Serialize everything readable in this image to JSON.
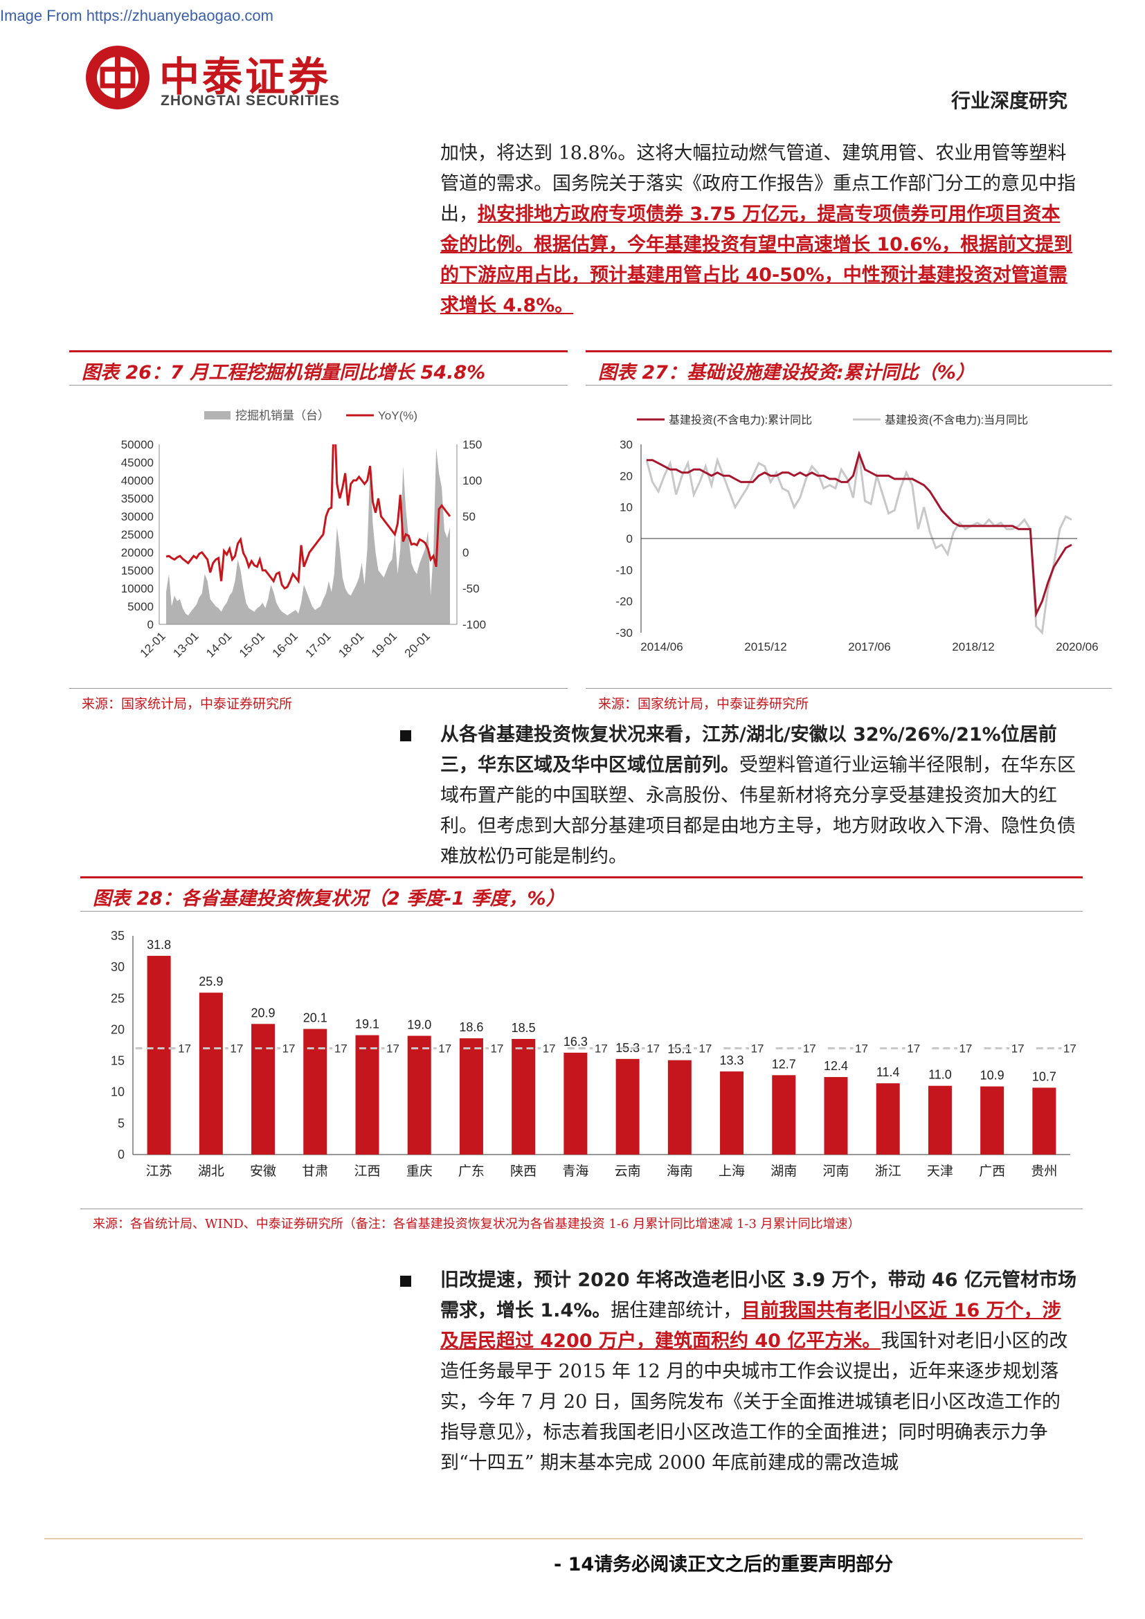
{
  "header": {
    "source_url": "Image From https://zhuanyebaogao.com",
    "brand_cn": "中泰证券",
    "brand_en": "ZHONGTAI SECURITIES",
    "report_type": "行业深度研究"
  },
  "para1": {
    "t1": "加快，将达到 18.8%。这将大幅拉动燃气管道、建筑用管、农业用管等塑料管道的需求。国务院关于落实《政府工作报告》重点工作部门分工的意见中指出，",
    "h1": "拟安排地方政府专项债券 3.75 万亿元，提高专项债券可用作项目资本金的比例。根据估算，今年基建投资有望中高速增长 10.6%，根据前文提到的下游应用占比，预计基建用管占比 40-50%，中性预计基建投资对管道需求增长 4.8%。"
  },
  "fig26": {
    "title": "图表 26：7 月工程挖掘机销量同比增长 54.8%",
    "source": "来源：国家统计局，中泰证券研究所"
  },
  "fig27": {
    "title": "图表 27：基础设施建设投资:累计同比（%）",
    "source": "来源：国家统计局，中泰证券研究所"
  },
  "para2": {
    "b1": "从各省基建投资恢复状况来看，江苏/湖北/安徽以 32%/26%/21%位居前三，华东区域及华中区域位居前列。",
    "t1": "受塑料管道行业运输半径限制，在华东区域布置产能的中国联塑、永高股份、伟星新材将充分享受基建投资加大的红利。但考虑到大部分基建项目都是由地方主导，地方财政收入下滑、隐性负债难放松仍可能是制约。"
  },
  "fig28": {
    "title": "图表 28：各省基建投资恢复状况（2 季度-1 季度，%）",
    "source": "来源：各省统计局、WIND、中泰证券研究所（备注：各省基建投资恢复状况为各省基建投资 1-6 月累计同比增速减 1-3 月累计同比增速）"
  },
  "para3": {
    "b1": "旧改提速，预计 2020 年将改造老旧小区 3.9 万个，带动 46 亿元管材市场需求，增长 1.4%。",
    "t1": "据住建部统计，",
    "h1": "目前我国共有老旧小区近 16 万个，涉及居民超过 4200 万户，建筑面积约 40 亿平方米。",
    "t2": "我国针对老旧小区的改造任务最早于 2015 年 12 月的中央城市工作会议提出，近年来逐步规划落实，今年 7 月 20 日，国务院发布《关于全面推进城镇老旧小区改造工作的指导意见》，标志着我国老旧小区改造工作的全面推进；同时明确表示力争到“十四五” 期末基本完成 2000 年底前建成的需改造城"
  },
  "footer": {
    "text": "- 14请务必阅读正文之后的重要声明部分"
  },
  "colors": {
    "accent": "#c4161c",
    "gray": "#b3b3b3",
    "dash": "#c8c8c8"
  },
  "chart_data": [
    {
      "type": "area+line",
      "legend": [
        "挖掘机销量（台）",
        "YoY(%)"
      ],
      "legend_position": "top",
      "x_ticks": [
        "12-01",
        "13-01",
        "14-01",
        "15-01",
        "16-01",
        "17-01",
        "18-01",
        "19-01",
        "20-01"
      ],
      "y_left_ticks": [
        "0",
        "5000",
        "10000",
        "15000",
        "20000",
        "25000",
        "30000",
        "35000",
        "40000",
        "45000",
        "50000"
      ],
      "y_left_range": [
        0,
        50000
      ],
      "y_right_ticks": [
        "-100",
        "-50",
        "0",
        "50",
        "100",
        "150"
      ],
      "y_right_range": [
        -100,
        150
      ],
      "grid": false,
      "series": [
        {
          "name": "挖掘机销量（台）",
          "axis": "left",
          "values": [
            9000,
            14000,
            5000,
            8000,
            6500,
            7000,
            4500,
            3000,
            2500,
            3500,
            4500,
            5500,
            7500,
            8500,
            14000,
            12000,
            7000,
            6000,
            5000,
            4500,
            3500,
            5000,
            6000,
            8000,
            9000,
            12000,
            18000,
            15000,
            10000,
            6000,
            4500,
            4000,
            3500,
            4500,
            5000,
            6000,
            4500,
            7000,
            11000,
            9000,
            6000,
            4500,
            3500,
            3000,
            2500,
            3000,
            3500,
            4000,
            3000,
            6000,
            11000,
            9000,
            7000,
            5000,
            4000,
            4500,
            5000,
            7000,
            8500,
            12000,
            9000,
            14000,
            27000,
            21000,
            13000,
            10000,
            8500,
            8000,
            9500,
            11000,
            13000,
            17000,
            11000,
            21000,
            44000,
            28000,
            20000,
            15000,
            14000,
            13000,
            15000,
            17000,
            18000,
            25000,
            14000,
            21000,
            44000,
            32000,
            24000,
            17000,
            15000,
            14000,
            17000,
            19000,
            21000,
            26000,
            8000,
            20000,
            49000,
            42000,
            38000,
            26000,
            24000,
            27000
          ]
        },
        {
          "name": "YoY(%)",
          "axis": "right",
          "values": [
            -6,
            -5,
            -8,
            -10,
            -7,
            -5,
            -9,
            -12,
            -15,
            -10,
            -5,
            -8,
            -2,
            0,
            -5,
            -10,
            -28,
            -15,
            -10,
            -8,
            -40,
            2,
            -3,
            5,
            -10,
            -5,
            12,
            18,
            -1,
            -8,
            -20,
            -12,
            -18,
            -20,
            -10,
            -25,
            -25,
            -30,
            -35,
            -40,
            -30,
            -28,
            -45,
            -50,
            -48,
            -40,
            -30,
            -35,
            -40,
            10,
            -20,
            -10,
            0,
            5,
            10,
            15,
            20,
            25,
            50,
            60,
            62,
            200,
            95,
            75,
            90,
            110,
            65,
            95,
            100,
            100,
            105,
            100,
            95,
            100,
            120,
            70,
            55,
            75,
            50,
            45,
            40,
            35,
            30,
            25,
            40,
            80,
            15,
            25,
            23,
            11,
            12,
            10,
            18,
            16,
            13,
            5,
            -10,
            -5,
            -20,
            60,
            65,
            60,
            55,
            50
          ]
        }
      ]
    },
    {
      "type": "line",
      "legend": [
        "基建投资(不含电力):累计同比",
        "基建投资(不含电力):当月同比"
      ],
      "legend_position": "top",
      "x_ticks": [
        "2014/06",
        "2015/12",
        "2017/06",
        "2018/12",
        "2020/06"
      ],
      "y_ticks": [
        "-30",
        "-20",
        "-10",
        "0",
        "10",
        "20",
        "30"
      ],
      "y_range": [
        -30,
        30
      ],
      "grid": false,
      "series": [
        {
          "name": "基建投资(不含电力):累计同比",
          "values": [
            25,
            25,
            24,
            23,
            22,
            22,
            21,
            21,
            22,
            22,
            21,
            20,
            21,
            20,
            20,
            19,
            18,
            18,
            18,
            20,
            21,
            20,
            20,
            21,
            21,
            20,
            21,
            20,
            21,
            20,
            20,
            19,
            19,
            18,
            18,
            20,
            27,
            22,
            21,
            20,
            20,
            20,
            19,
            19,
            19,
            19,
            18,
            17,
            15,
            12,
            9,
            7,
            5,
            4,
            4,
            4,
            4,
            4,
            4,
            4,
            4,
            4,
            4,
            3,
            3,
            3,
            -24,
            -20,
            -14,
            -9,
            -6,
            -3,
            -2
          ]
        },
        {
          "name": "基建投资(不含电力):当月同比",
          "values": [
            25,
            18,
            15,
            20,
            24,
            14,
            20,
            24,
            14,
            18,
            23,
            17,
            25,
            20,
            15,
            10,
            13,
            16,
            20,
            24,
            23,
            18,
            21,
            16,
            15,
            10,
            13,
            19,
            23,
            21,
            16,
            17,
            16,
            22,
            19,
            13,
            27,
            12,
            11,
            20,
            14,
            8,
            9,
            16,
            21,
            17,
            3,
            10,
            2,
            -3,
            -2,
            -5,
            2,
            5,
            3,
            4,
            5,
            4,
            6,
            4,
            5,
            3,
            3,
            4,
            6,
            3,
            -28,
            -30,
            -16,
            -8,
            3,
            7,
            6
          ]
        }
      ]
    },
    {
      "type": "bar",
      "categories": [
        "江苏",
        "湖北",
        "安徽",
        "甘肃",
        "江西",
        "重庆",
        "广东",
        "陕西",
        "青海",
        "云南",
        "海南",
        "上海",
        "湖南",
        "河南",
        "浙江",
        "天津",
        "广西",
        "贵州"
      ],
      "values": [
        31.8,
        25.9,
        20.9,
        20.1,
        19.1,
        19.0,
        18.6,
        18.5,
        16.3,
        15.3,
        15.1,
        13.3,
        12.7,
        12.4,
        11.4,
        11.0,
        10.9,
        10.7
      ],
      "value_labels": [
        "31.8",
        "25.9",
        "20.9",
        "20.1",
        "19.1",
        "19.0",
        "18.6",
        "18.5",
        "16.3",
        "15.3",
        "15.1",
        "13.3",
        "12.7",
        "12.4",
        "11.4",
        "11.0",
        "10.9",
        "10.7"
      ],
      "reference_line": {
        "value": 17,
        "label": "17"
      },
      "y_ticks": [
        "0",
        "5",
        "10",
        "15",
        "20",
        "25",
        "30",
        "35"
      ],
      "ylim": [
        0,
        35
      ],
      "grid": false
    }
  ]
}
